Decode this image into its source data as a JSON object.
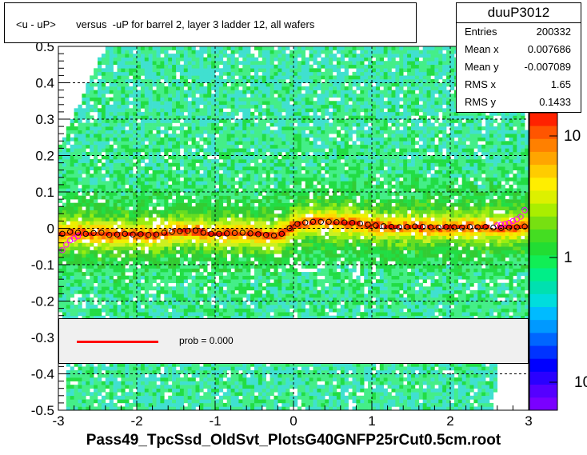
{
  "title": "<u - uP>       versus  -uP for barrel 2, layer 3 ladder 12, all wafers",
  "x_title": "Pass49_TpcSsd_OldSvt_PlotsG40GNFP25rCut0.5cm.root",
  "stats": {
    "name": "duuP3012",
    "rows": [
      {
        "label": "Entries",
        "value": "200332"
      },
      {
        "label": "Mean x",
        "value": "0.007686"
      },
      {
        "label": "Mean y",
        "value": "-0.007089"
      },
      {
        "label": "RMS x",
        "value": "1.65"
      },
      {
        "label": "RMS y",
        "value": "0.1433"
      }
    ]
  },
  "legend": {
    "text": "prob = 0.000",
    "line_color": "#ff0000"
  },
  "palette_labels": [
    "10",
    "1",
    "10"
  ],
  "colors": {
    "profile_marker": "#000000",
    "fit_marker": "#ff00ff",
    "fit_line": "#ff0000",
    "frame": "#000000"
  },
  "chart_data": {
    "type": "heatmap",
    "xlim": [
      -3,
      3
    ],
    "ylim": [
      -0.5,
      0.5
    ],
    "x_ticks": [
      "-3",
      "-2",
      "-1",
      "0",
      "1",
      "2",
      "3"
    ],
    "y_ticks": [
      "-0.5",
      "-0.4",
      "-0.3",
      "-0.2",
      "-0.1",
      "0",
      "0.1",
      "0.2",
      "0.3",
      "0.4",
      "0.5"
    ],
    "grid": true,
    "z_scale": "log",
    "profile_x": [
      -2.95,
      -2.85,
      -2.75,
      -2.65,
      -2.55,
      -2.45,
      -2.35,
      -2.25,
      -2.15,
      -2.05,
      -1.95,
      -1.85,
      -1.75,
      -1.65,
      -1.55,
      -1.45,
      -1.35,
      -1.25,
      -1.15,
      -1.05,
      -0.95,
      -0.85,
      -0.75,
      -0.65,
      -0.55,
      -0.45,
      -0.35,
      -0.25,
      -0.15,
      -0.05,
      0.05,
      0.15,
      0.25,
      0.35,
      0.45,
      0.55,
      0.65,
      0.75,
      0.85,
      0.95,
      1.05,
      1.15,
      1.25,
      1.35,
      1.45,
      1.55,
      1.65,
      1.75,
      1.85,
      1.95,
      2.05,
      2.15,
      2.25,
      2.35,
      2.45,
      2.55,
      2.65,
      2.75,
      2.85,
      2.95
    ],
    "profile_y": [
      -0.015,
      -0.01,
      -0.012,
      -0.015,
      -0.013,
      -0.012,
      -0.018,
      -0.017,
      -0.015,
      -0.017,
      -0.016,
      -0.018,
      -0.017,
      -0.012,
      -0.01,
      -0.008,
      -0.007,
      -0.006,
      -0.012,
      -0.015,
      -0.015,
      -0.014,
      -0.013,
      -0.012,
      -0.014,
      -0.016,
      -0.018,
      -0.02,
      -0.015,
      0.0,
      0.012,
      0.016,
      0.018,
      0.018,
      0.018,
      0.017,
      0.016,
      0.015,
      0.013,
      0.01,
      0.008,
      0.006,
      0.004,
      0.003,
      0.004,
      0.005,
      0.004,
      0.003,
      0.002,
      0.004,
      0.003,
      0.002,
      0.004,
      0.003,
      0.004,
      0.002,
      0.001,
      0.002,
      0.003,
      0.005
    ],
    "fit_points_x": [
      -2.95,
      -2.9,
      -2.85,
      -2.8,
      -2.75,
      2.6,
      2.65,
      2.7,
      2.75,
      2.8,
      2.85,
      2.9,
      2.95
    ],
    "fit_points_y": [
      -0.06,
      -0.045,
      -0.033,
      -0.028,
      -0.022,
      0.008,
      0.01,
      0.012,
      0.015,
      0.02,
      0.025,
      0.032,
      0.05
    ],
    "legend_entry": "prob = 0.000"
  }
}
